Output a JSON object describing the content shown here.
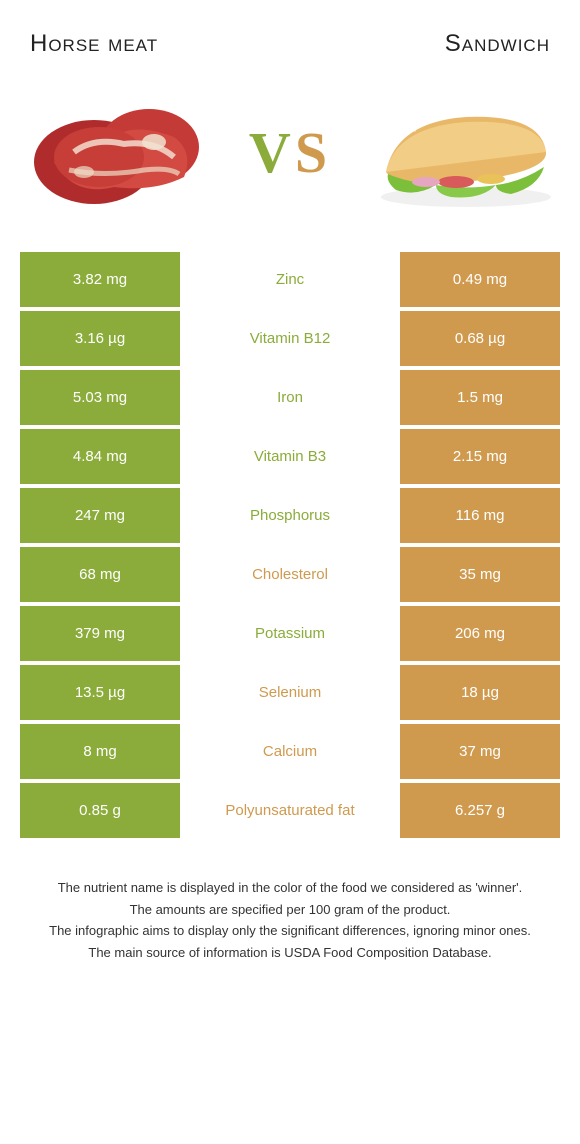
{
  "header": {
    "left_title": "Horse meat",
    "right_title": "Sandwich"
  },
  "vs": {
    "label": "VS",
    "left_color": "#8bac3a",
    "right_color": "#d09a4e"
  },
  "images": {
    "left_alt": "horse-meat-image",
    "right_alt": "sandwich-image"
  },
  "colors": {
    "left_bg": "#8bac3a",
    "right_bg": "#d09a4e",
    "left_text": "#8bac3a",
    "right_text": "#d09a4e"
  },
  "rows": [
    {
      "left": "3.82 mg",
      "label": "Zinc",
      "right": "0.49 mg",
      "winner": "left"
    },
    {
      "left": "3.16 µg",
      "label": "Vitamin B12",
      "right": "0.68 µg",
      "winner": "left"
    },
    {
      "left": "5.03 mg",
      "label": "Iron",
      "right": "1.5 mg",
      "winner": "left"
    },
    {
      "left": "4.84 mg",
      "label": "Vitamin B3",
      "right": "2.15 mg",
      "winner": "left"
    },
    {
      "left": "247 mg",
      "label": "Phosphorus",
      "right": "116 mg",
      "winner": "left"
    },
    {
      "left": "68 mg",
      "label": "Cholesterol",
      "right": "35 mg",
      "winner": "right"
    },
    {
      "left": "379 mg",
      "label": "Potassium",
      "right": "206 mg",
      "winner": "left"
    },
    {
      "left": "13.5 µg",
      "label": "Selenium",
      "right": "18 µg",
      "winner": "right"
    },
    {
      "left": "8 mg",
      "label": "Calcium",
      "right": "37 mg",
      "winner": "right"
    },
    {
      "left": "0.85 g",
      "label": "Polyunsaturated fat",
      "right": "6.257 g",
      "winner": "right"
    }
  ],
  "footer": {
    "line1": "The nutrient name is displayed in the color of the food we considered as 'winner'.",
    "line2": "The amounts are specified per 100 gram of the product.",
    "line3": "The infographic aims to display only the significant differences, ignoring minor ones.",
    "line4": "The main source of information is USDA Food Composition Database."
  }
}
